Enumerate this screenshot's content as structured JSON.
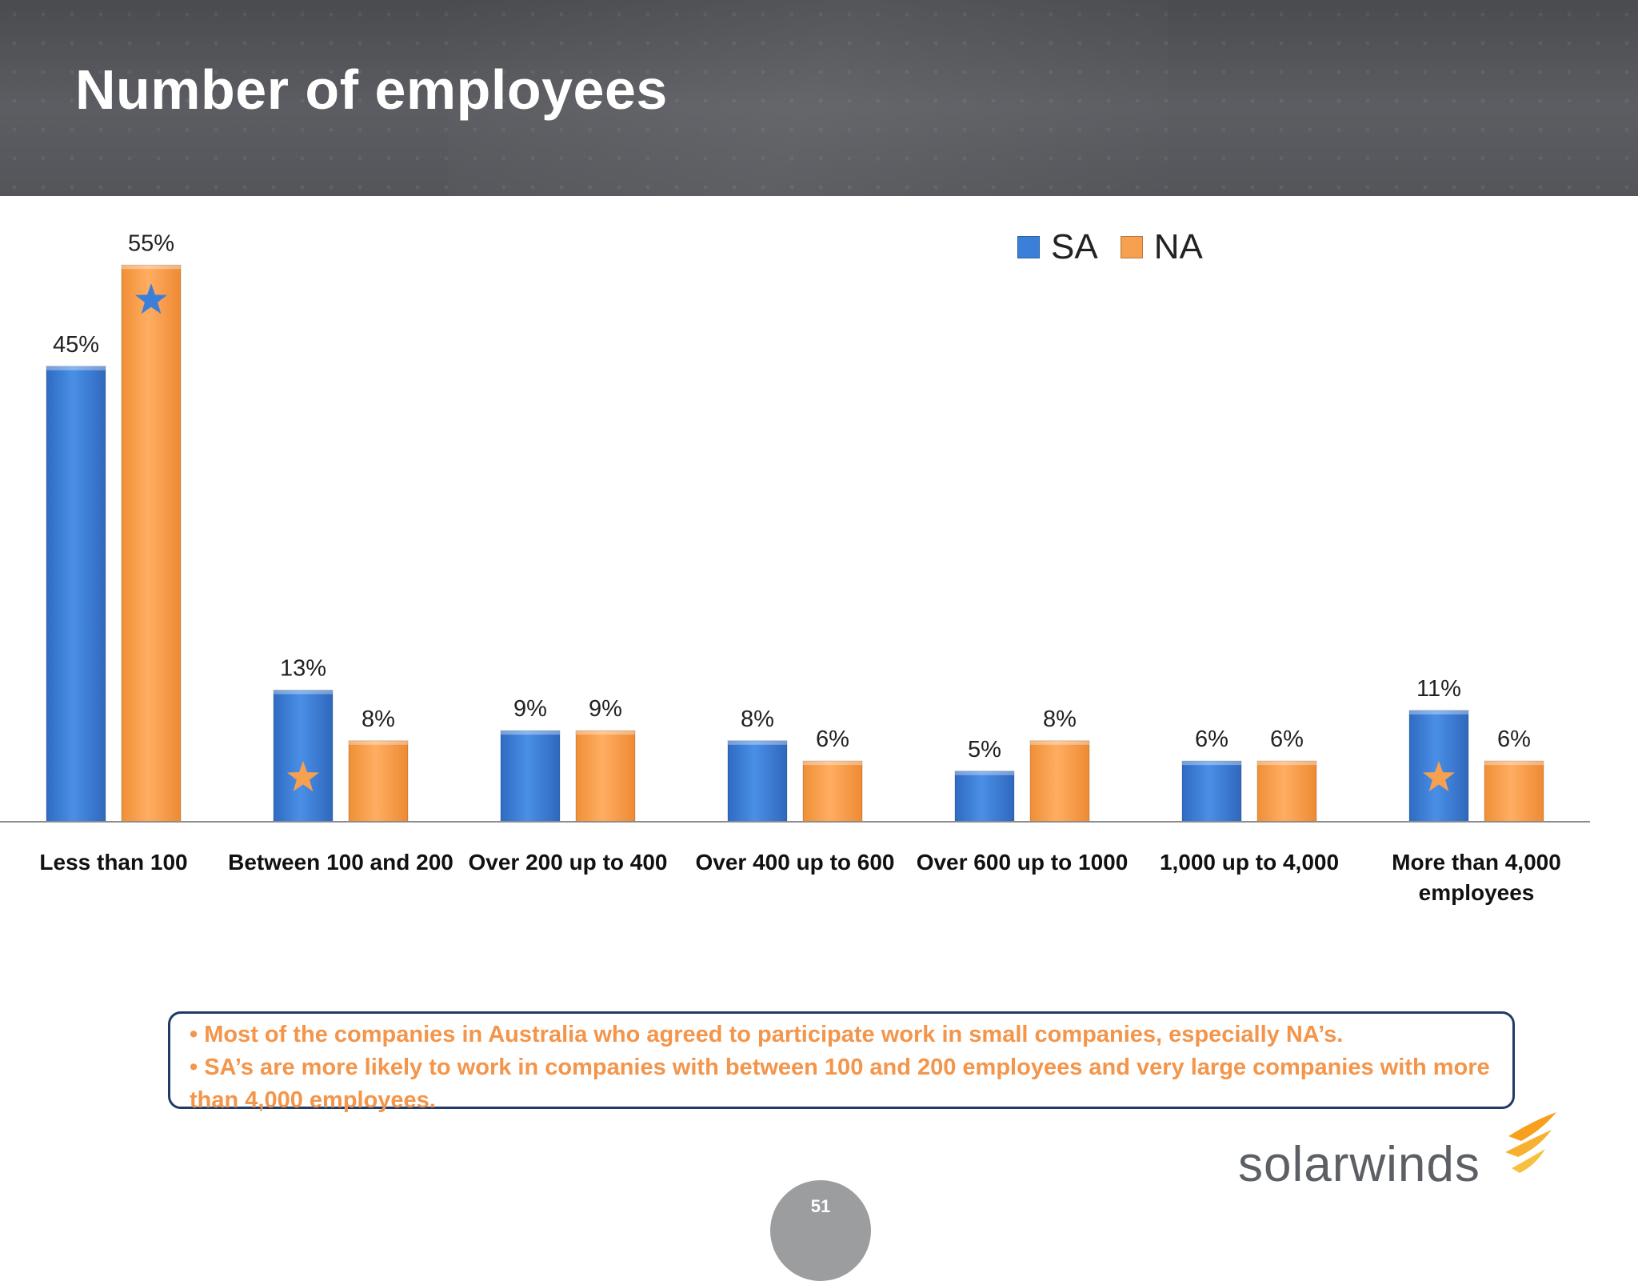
{
  "header": {
    "title": "Number of employees"
  },
  "colors": {
    "SA": "#3b7fd9",
    "NA": "#f7a050"
  },
  "chart_data": {
    "type": "bar",
    "categories": [
      [
        "Less than 100"
      ],
      [
        "Between 100 and 200"
      ],
      [
        "Over 200 up to 400"
      ],
      [
        "Over 400 up to 600"
      ],
      [
        "Over 600 up to 1000"
      ],
      [
        "1,000 up to 4,000"
      ],
      [
        "More than 4,000",
        "employees"
      ]
    ],
    "series": [
      {
        "name": "SA",
        "values": [
          45,
          13,
          9,
          8,
          5,
          6,
          11
        ],
        "labels": [
          "45%",
          "13%",
          "9%",
          "8%",
          "5%",
          "6%",
          "11%"
        ]
      },
      {
        "name": "NA",
        "values": [
          55,
          8,
          9,
          6,
          8,
          6,
          6
        ],
        "labels": [
          "55%",
          "8%",
          "9%",
          "6%",
          "8%",
          "6%",
          "6%"
        ]
      }
    ],
    "ylim": [
      0,
      55
    ],
    "grid": false,
    "legend": "top-right",
    "annotations": [
      {
        "category": "Less than 100",
        "series": "NA",
        "marker": "star",
        "color": "#3b7fd9"
      },
      {
        "category": "Between 100 and 200",
        "series": "SA",
        "marker": "star",
        "color": "#f7a050"
      },
      {
        "category": "More than 4,000 employees",
        "series": "SA",
        "marker": "star",
        "color": "#f7a050"
      }
    ]
  },
  "notes": [
    "• Most of the companies in Australia who agreed to participate work in small companies, especially NA’s.",
    "• SA’s are more likely to work in companies with between 100 and 200 employees and very large companies with more than 4,000 employees."
  ],
  "logo": {
    "text": "solarwinds",
    "icon": "solarwinds-flame-icon"
  },
  "footer": {
    "page_number": "51"
  }
}
